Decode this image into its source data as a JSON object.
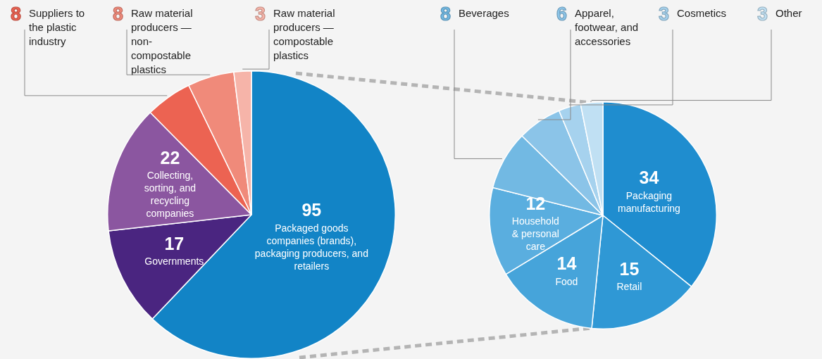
{
  "chart_data": [
    {
      "type": "pie",
      "categories": [
        "Packaged goods companies (brands), packaging producers, and retailers",
        "Governments",
        "Collecting, sorting, and recycling companies",
        "Suppliers to the plastic industry",
        "Raw material producers — non-compostable plastics",
        "Raw material producers — compostable plastics"
      ],
      "values": [
        95,
        17,
        22,
        8,
        8,
        3
      ],
      "colors": [
        "#1284c6",
        "#4a2580",
        "#8b56a0",
        "#ec6352",
        "#f08a7a",
        "#f6b4a9"
      ],
      "data_labels": true
    },
    {
      "type": "pie",
      "categories": [
        "Packaging manufacturing",
        "Retail",
        "Food",
        "Household & personal care",
        "Beverages",
        "Apparel, footwear, and accessories",
        "Cosmetics",
        "Other"
      ],
      "values": [
        34,
        15,
        14,
        12,
        8,
        6,
        3,
        3
      ],
      "colors": [
        "#1f8dcf",
        "#2f98d5",
        "#46a4da",
        "#5aaedf",
        "#72b9e3",
        "#8bc4e8",
        "#a6d2ee",
        "#c0e0f3"
      ],
      "data_labels": true
    }
  ]
}
